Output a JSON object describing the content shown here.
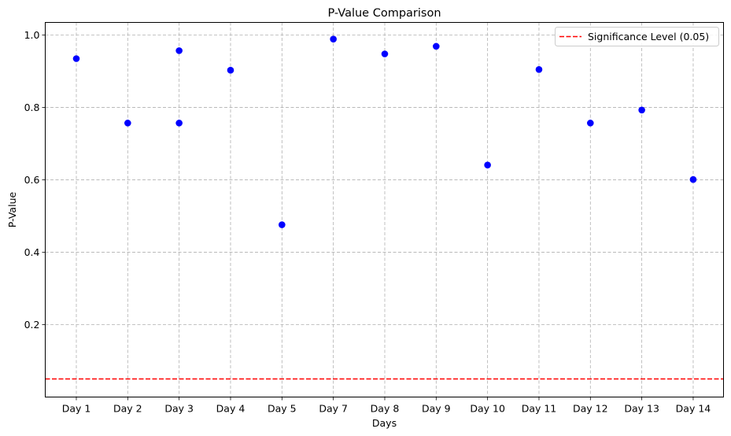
{
  "chart_data": {
    "type": "scatter",
    "title": "P-Value Comparison",
    "xlabel": "Days",
    "ylabel": "P-Value",
    "categories": [
      "Day 1",
      "Day 2",
      "Day 3",
      "Day 4",
      "Day 5",
      "Day 7",
      "Day 8",
      "Day 9",
      "Day 10",
      "Day 11",
      "Day 12",
      "Day 13",
      "Day 14"
    ],
    "points": [
      {
        "x": "Day 1",
        "y": 0.935
      },
      {
        "x": "Day 2",
        "y": 0.757
      },
      {
        "x": "Day 3",
        "y": 0.957
      },
      {
        "x": "Day 3",
        "y": 0.757
      },
      {
        "x": "Day 4",
        "y": 0.903
      },
      {
        "x": "Day 5",
        "y": 0.476
      },
      {
        "x": "Day 7",
        "y": 0.989
      },
      {
        "x": "Day 8",
        "y": 0.948
      },
      {
        "x": "Day 9",
        "y": 0.969
      },
      {
        "x": "Day 10",
        "y": 0.641
      },
      {
        "x": "Day 11",
        "y": 0.905
      },
      {
        "x": "Day 12",
        "y": 0.757
      },
      {
        "x": "Day 13",
        "y": 0.793
      },
      {
        "x": "Day 14",
        "y": 0.601
      }
    ],
    "ylim": [
      0.0,
      1.035
    ],
    "yticks": [
      0.2,
      0.4,
      0.6,
      0.8,
      1.0
    ],
    "ytick_labels": [
      "0.2",
      "0.4",
      "0.6",
      "0.8",
      "1.0"
    ],
    "grid": true,
    "point_color": "#0000ff",
    "significance": {
      "y": 0.05,
      "label": "Significance Level (0.05)",
      "color": "#ff0000",
      "style": "dashed"
    },
    "legend_position": "top-right"
  }
}
